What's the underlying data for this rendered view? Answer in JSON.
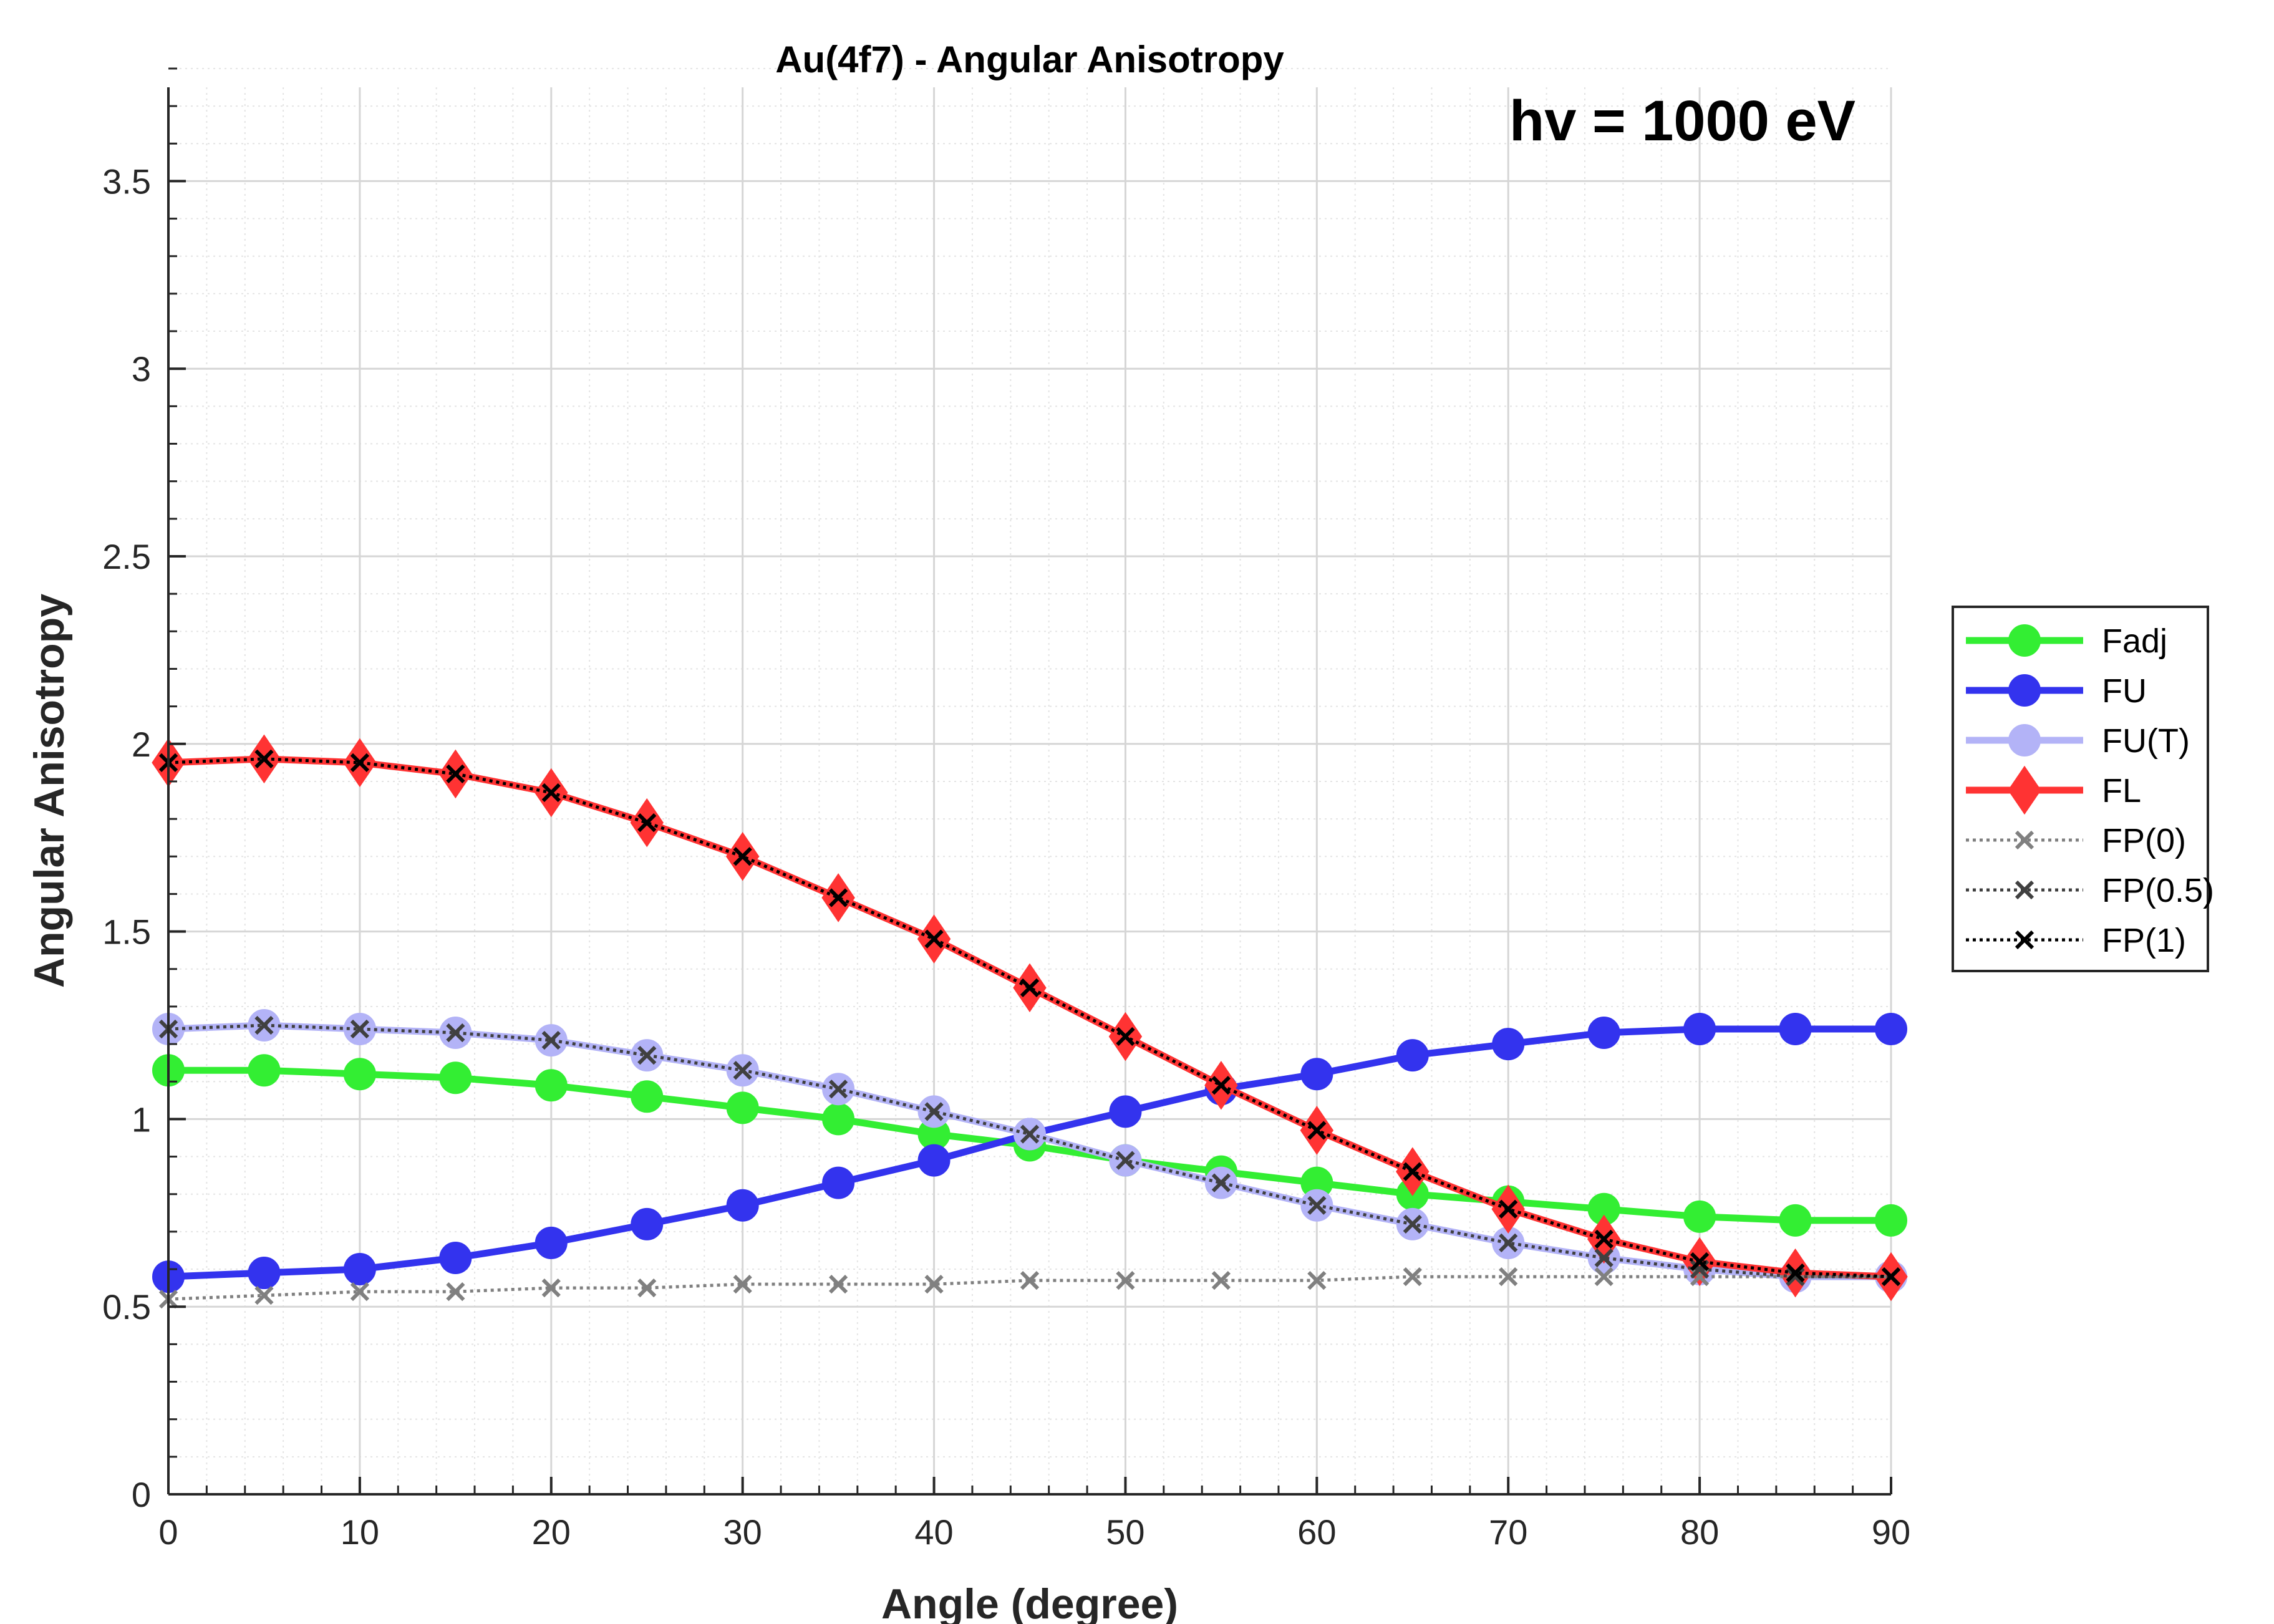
{
  "chart_data": {
    "type": "line",
    "title": "Au(4f7) - Angular Anisotropy",
    "annotation": "hv = 1000 eV",
    "xlabel": "Angle (degree)",
    "ylabel": "Angular Anisotropy",
    "xlim": [
      0,
      90
    ],
    "ylim": [
      0,
      3.75
    ],
    "xticks": [
      0,
      10,
      20,
      30,
      40,
      50,
      60,
      70,
      80,
      90
    ],
    "xtick_labels": [
      "0",
      "10",
      "20",
      "30",
      "40",
      "50",
      "60",
      "70",
      "80",
      "90"
    ],
    "yticks": [
      0,
      0.5,
      1,
      1.5,
      2,
      2.5,
      3,
      3.5
    ],
    "ytick_labels": [
      "0",
      "0.5",
      "1",
      "1.5",
      "2",
      "2.5",
      "3",
      "3.5"
    ],
    "grid": true,
    "minor_grid": true,
    "legend_position": "outside-right",
    "x": [
      0,
      5,
      10,
      15,
      20,
      25,
      30,
      35,
      40,
      45,
      50,
      55,
      60,
      65,
      70,
      75,
      80,
      85,
      90
    ],
    "series": [
      {
        "name": "Fadj",
        "color": "#33ee33",
        "marker": "circle",
        "line": "solid",
        "values": [
          1.13,
          1.13,
          1.12,
          1.11,
          1.09,
          1.06,
          1.03,
          1.0,
          0.96,
          0.93,
          0.89,
          0.86,
          0.83,
          0.8,
          0.78,
          0.76,
          0.74,
          0.73,
          0.73
        ]
      },
      {
        "name": "FU",
        "color": "#3333ee",
        "marker": "circle",
        "line": "solid",
        "values": [
          0.58,
          0.59,
          0.6,
          0.63,
          0.67,
          0.72,
          0.77,
          0.83,
          0.89,
          0.96,
          1.02,
          1.08,
          1.12,
          1.17,
          1.2,
          1.23,
          1.24,
          1.24,
          1.24
        ]
      },
      {
        "name": "FU(T)",
        "color": "#b3b3f7",
        "marker": "circle",
        "line": "solid",
        "values": [
          1.24,
          1.25,
          1.24,
          1.23,
          1.21,
          1.17,
          1.13,
          1.08,
          1.02,
          0.96,
          0.89,
          0.83,
          0.77,
          0.72,
          0.67,
          0.63,
          0.6,
          0.58,
          0.58
        ]
      },
      {
        "name": "FL",
        "color": "#ff3333",
        "marker": "diamond",
        "line": "solid",
        "values": [
          1.95,
          1.96,
          1.95,
          1.92,
          1.87,
          1.79,
          1.7,
          1.59,
          1.48,
          1.35,
          1.22,
          1.09,
          0.97,
          0.86,
          0.76,
          0.68,
          0.62,
          0.59,
          0.58
        ]
      },
      {
        "name": "FP(0)",
        "color": "#808080",
        "marker": "x",
        "line": "dotted",
        "values": [
          0.52,
          0.53,
          0.54,
          0.54,
          0.55,
          0.55,
          0.56,
          0.56,
          0.56,
          0.57,
          0.57,
          0.57,
          0.57,
          0.58,
          0.58,
          0.58,
          0.58,
          0.58,
          0.58
        ]
      },
      {
        "name": "FP(0.5)",
        "color": "#404040",
        "marker": "x",
        "line": "dotted",
        "values": [
          1.24,
          1.25,
          1.24,
          1.23,
          1.21,
          1.17,
          1.13,
          1.08,
          1.02,
          0.96,
          0.89,
          0.83,
          0.77,
          0.72,
          0.67,
          0.63,
          0.6,
          0.58,
          0.58
        ]
      },
      {
        "name": "FP(1)",
        "color": "#000000",
        "marker": "x",
        "line": "dotted",
        "values": [
          1.95,
          1.96,
          1.95,
          1.92,
          1.87,
          1.79,
          1.7,
          1.59,
          1.48,
          1.35,
          1.22,
          1.09,
          0.97,
          0.86,
          0.76,
          0.68,
          0.62,
          0.59,
          0.58
        ]
      }
    ]
  }
}
